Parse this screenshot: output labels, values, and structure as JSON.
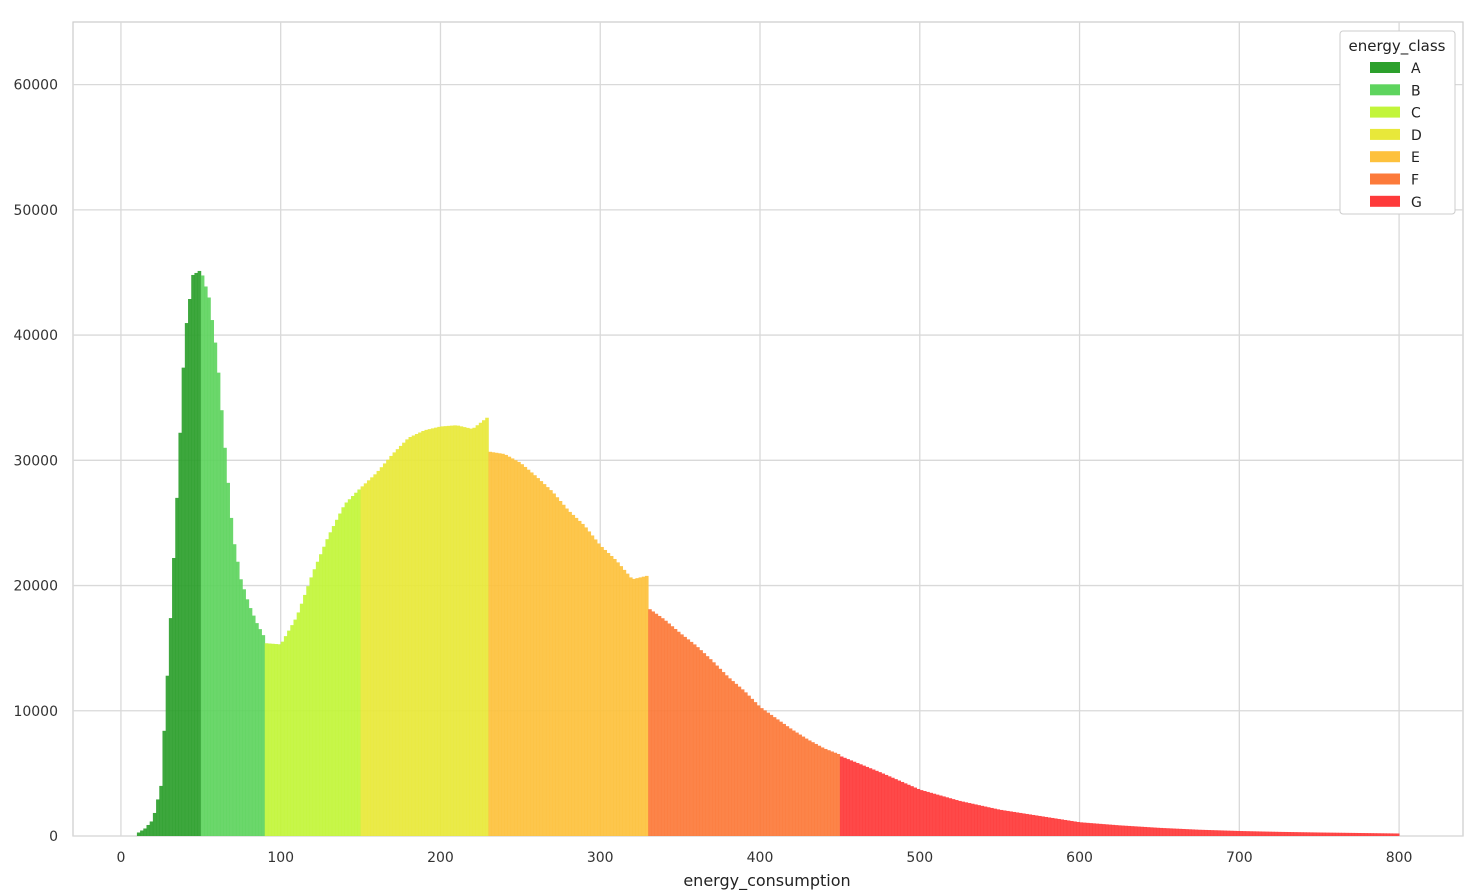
{
  "chart_data": {
    "type": "bar",
    "subtype": "histogram",
    "title": "",
    "xlabel": "energy_consumption",
    "ylabel": "",
    "xlim": [
      -30,
      840
    ],
    "ylim": [
      0,
      65000
    ],
    "xticks": [
      0,
      100,
      200,
      300,
      400,
      500,
      600,
      700,
      800
    ],
    "yticks": [
      0,
      10000,
      20000,
      30000,
      40000,
      50000,
      60000
    ],
    "grid": true,
    "legend": {
      "title": "energy_class",
      "placement": "top-right",
      "entries": [
        {
          "label": "A",
          "color": "#2ca02c"
        },
        {
          "label": "B",
          "color": "#5ed45e"
        },
        {
          "label": "C",
          "color": "#c2f53a"
        },
        {
          "label": "D",
          "color": "#e8e83a"
        },
        {
          "label": "E",
          "color": "#fdc13d"
        },
        {
          "label": "F",
          "color": "#fc7a3a"
        },
        {
          "label": "G",
          "color": "#fe3a3a"
        }
      ]
    },
    "series": [
      {
        "name": "A",
        "color": "#2ca02c",
        "x": [
          10,
          15,
          20,
          25,
          30,
          35,
          40,
          45,
          50
        ],
        "y": [
          200,
          600,
          1300,
          4000,
          15000,
          27000,
          40000,
          44800,
          45200
        ]
      },
      {
        "name": "B",
        "color": "#5ed45e",
        "x": [
          50,
          55,
          60,
          65,
          70,
          75,
          80,
          85,
          90
        ],
        "y": [
          45200,
          43000,
          38500,
          31000,
          24000,
          20500,
          18500,
          17000,
          15800
        ]
      },
      {
        "name": "C",
        "color": "#c2f53a",
        "x": [
          90,
          100,
          110,
          120,
          130,
          140,
          150
        ],
        "y": [
          15400,
          15300,
          17500,
          21000,
          24000,
          26500,
          27800
        ]
      },
      {
        "name": "D",
        "color": "#e8e83a",
        "x": [
          150,
          160,
          170,
          180,
          190,
          200,
          210,
          220,
          230
        ],
        "y": [
          27800,
          29000,
          30500,
          31800,
          32400,
          32700,
          32800,
          32500,
          33500
        ]
      },
      {
        "name": "E",
        "color": "#fdc13d",
        "x": [
          230,
          240,
          250,
          260,
          270,
          280,
          290,
          300,
          310,
          320,
          330
        ],
        "y": [
          30700,
          30500,
          29800,
          28700,
          27500,
          26000,
          24800,
          23200,
          22000,
          20500,
          20800
        ]
      },
      {
        "name": "F",
        "color": "#fc7a3a",
        "x": [
          330,
          340,
          350,
          360,
          370,
          380,
          390,
          400,
          410,
          420,
          430,
          440,
          450
        ],
        "y": [
          18200,
          17300,
          16200,
          15200,
          14000,
          12700,
          11600,
          10300,
          9400,
          8500,
          7700,
          7000,
          6500
        ]
      },
      {
        "name": "G",
        "color": "#fe3a3a",
        "x": [
          450,
          475,
          500,
          525,
          550,
          575,
          600,
          625,
          650,
          675,
          700,
          725,
          750,
          775,
          800
        ],
        "y": [
          6400,
          5100,
          3700,
          2800,
          2100,
          1600,
          1100,
          850,
          650,
          500,
          400,
          330,
          280,
          240,
          200
        ]
      }
    ]
  }
}
